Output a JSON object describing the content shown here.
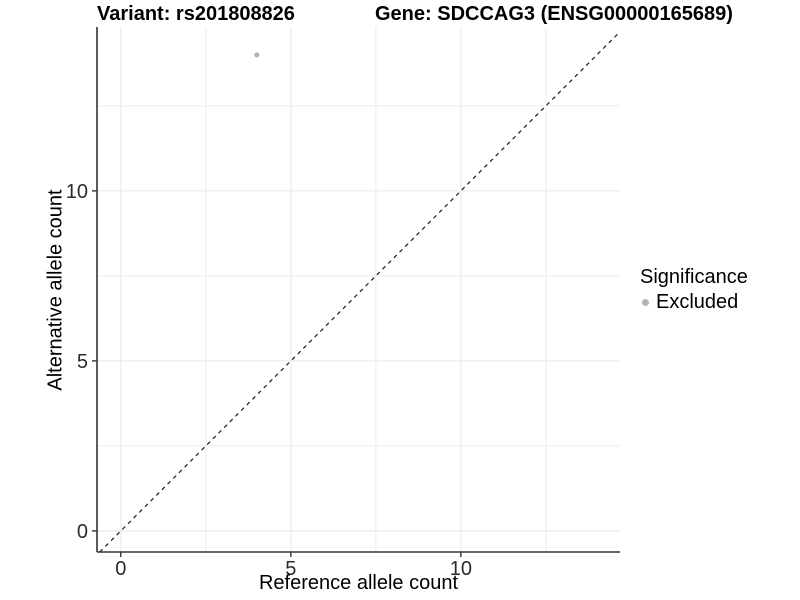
{
  "header": {
    "variant_title": "Variant: rs201808826",
    "gene_title": "Gene: SDCCAG3 (ENSG00000165689)"
  },
  "legend": {
    "title": "Significance",
    "items": [
      {
        "label": "Excluded",
        "color": "#b4b4b4",
        "marker": "dot"
      }
    ]
  },
  "chart_data": {
    "type": "scatter",
    "title": "Variant: rs201808826 — Gene: SDCCAG3 (ENSG00000165689)",
    "xlabel": "Reference allele count",
    "ylabel": "Alternative allele count",
    "xlim": [
      -0.7,
      14.68
    ],
    "ylim": [
      -0.62,
      14.82
    ],
    "x_ticks": [
      0,
      5,
      10
    ],
    "y_ticks": [
      0,
      5,
      10
    ],
    "x_minor_ticks": [
      2.5,
      7.5,
      12.5
    ],
    "y_minor_ticks": [
      2.5,
      7.5,
      12.5
    ],
    "grid": "major+minor",
    "legend_position": "right",
    "identity_line": {
      "style": "dashed",
      "color": "#1a1a1a"
    },
    "series": [
      {
        "name": "Excluded",
        "color": "#b4b4b4",
        "points": [
          {
            "x": 4,
            "y": 14
          }
        ]
      }
    ]
  },
  "colors": {
    "grid": "#ececec",
    "axis": "#333333",
    "tick_label": "#2b2b2b",
    "point": "#b4b4b4",
    "background": "#ffffff"
  }
}
